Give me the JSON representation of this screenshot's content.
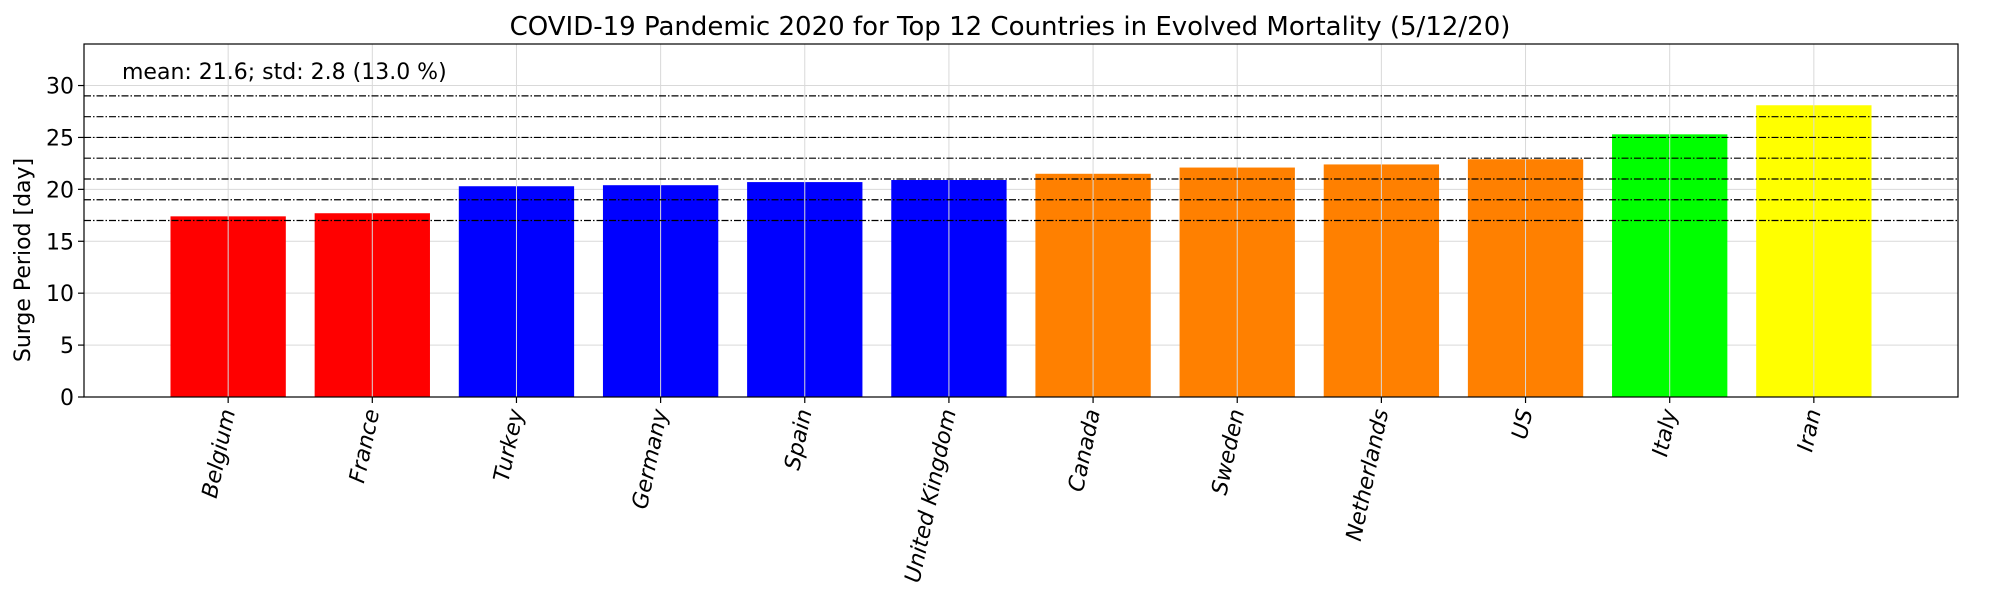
{
  "chart_data": {
    "type": "bar",
    "title": "COVID-19 Pandemic 2020 for Top 12 Countries in Evolved Mortality (5/12/20)",
    "xlabel": "",
    "ylabel": "Surge Period [day]",
    "ylim": [
      0,
      34
    ],
    "yticks": [
      0,
      5,
      10,
      15,
      20,
      25,
      30
    ],
    "grid": true,
    "annotation": "mean: 21.6; std: 2.8 (13.0 %)",
    "categories": [
      "Belgium",
      "France",
      "Turkey",
      "Germany",
      "Spain",
      "United Kingdom",
      "Canada",
      "Sweden",
      "Netherlands",
      "US",
      "Italy",
      "Iran"
    ],
    "values": [
      17.4,
      17.7,
      20.3,
      20.4,
      20.7,
      20.9,
      21.5,
      22.1,
      22.4,
      22.9,
      25.3,
      28.1
    ],
    "bar_colors": [
      "#ff0000",
      "#ff0000",
      "#0000ff",
      "#0000ff",
      "#0000ff",
      "#0000ff",
      "#ff8000",
      "#ff8000",
      "#ff8000",
      "#ff8000",
      "#00ff00",
      "#ffff00"
    ],
    "reference_lines": [
      17,
      19,
      21,
      23,
      25,
      27,
      29
    ]
  }
}
